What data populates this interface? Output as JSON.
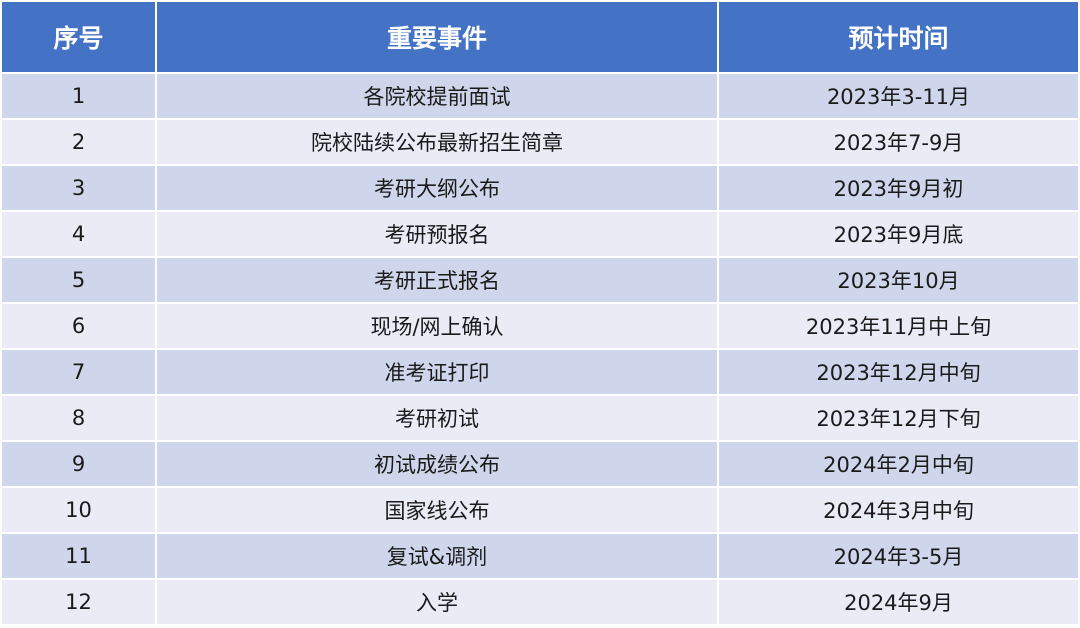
{
  "table": {
    "headers": [
      "序号",
      "重要事件",
      "预计时间"
    ],
    "rows": [
      [
        "1",
        "各院校提前面试",
        "2023年3-11月"
      ],
      [
        "2",
        "院校陆续公布最新招生简章",
        "2023年7-9月"
      ],
      [
        "3",
        "考研大纲公布",
        "2023年9月初"
      ],
      [
        "4",
        "考研预报名",
        "2023年9月底"
      ],
      [
        "5",
        "考研正式报名",
        "2023年10月"
      ],
      [
        "6",
        "现场/网上确认",
        "2023年11月中上旬"
      ],
      [
        "7",
        "准考证打印",
        "2023年12月中旬"
      ],
      [
        "8",
        "考研初试",
        "2023年12月下旬"
      ],
      [
        "9",
        "初试成绩公布",
        "2024年2月中旬"
      ],
      [
        "10",
        "国家线公布",
        "2024年3月中旬"
      ],
      [
        "11",
        "复试&调剂",
        "2024年3-5月"
      ],
      [
        "12",
        "入学",
        "2024年9月"
      ]
    ]
  },
  "colors": {
    "header_bg": "#4472c4",
    "header_text": "#ffffff",
    "row_odd_bg": "#cfd5ea",
    "row_even_bg": "#e9ebf5"
  }
}
